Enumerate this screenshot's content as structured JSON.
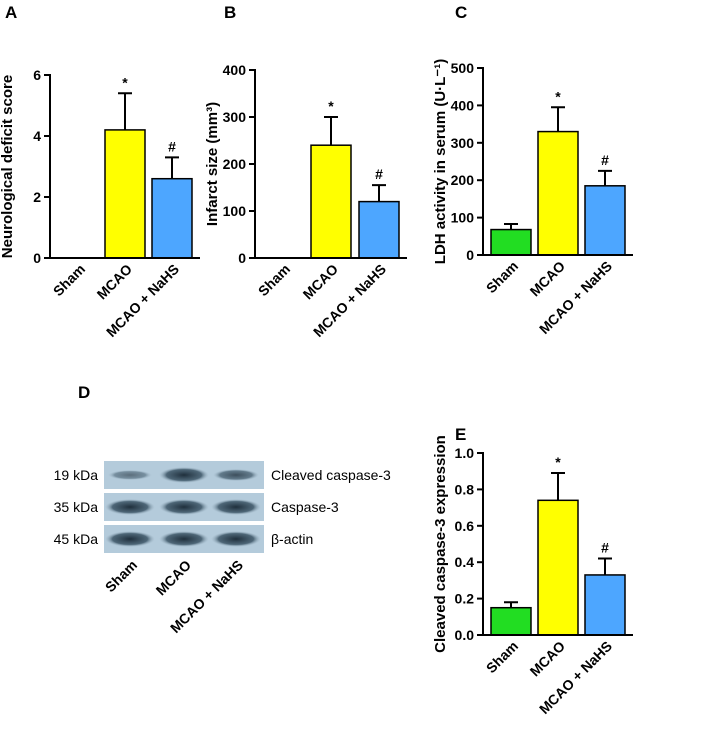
{
  "chart_data": [
    {
      "type": "bar",
      "panel": "A",
      "y_label": "Neurological deficit score",
      "categories": [
        "Sham",
        "MCAO",
        "MCAO + NaHS"
      ],
      "values": [
        0,
        4.2,
        2.6
      ],
      "errors": [
        0,
        1.2,
        0.7
      ],
      "colors": [
        "#22dd22",
        "#ffff00",
        "#4da6ff"
      ],
      "annotations": [
        null,
        "*",
        "#"
      ],
      "ylim": [
        0,
        6
      ],
      "yticks": [
        0,
        2,
        4,
        6
      ]
    },
    {
      "type": "bar",
      "panel": "B",
      "y_label": "Infarct size (mm³)",
      "categories": [
        "Sham",
        "MCAO",
        "MCAO + NaHS"
      ],
      "values": [
        0,
        240,
        120
      ],
      "errors": [
        0,
        60,
        35
      ],
      "colors": [
        "#22dd22",
        "#ffff00",
        "#4da6ff"
      ],
      "annotations": [
        null,
        "*",
        "#"
      ],
      "ylim": [
        0,
        400
      ],
      "yticks": [
        0,
        100,
        200,
        300,
        400
      ]
    },
    {
      "type": "bar",
      "panel": "C",
      "y_label": "LDH activity in serum (U·L⁻¹)",
      "categories": [
        "Sham",
        "MCAO",
        "MCAO + NaHS"
      ],
      "values": [
        68,
        330,
        185
      ],
      "errors": [
        15,
        65,
        40
      ],
      "colors": [
        "#22dd22",
        "#ffff00",
        "#4da6ff"
      ],
      "annotations": [
        null,
        "*",
        "#"
      ],
      "ylim": [
        0,
        500
      ],
      "yticks": [
        0,
        100,
        200,
        300,
        400,
        500
      ]
    },
    {
      "type": "bar",
      "panel": "E",
      "y_label": "Cleaved caspase-3 expression",
      "categories": [
        "Sham",
        "MCAO",
        "MCAO + NaHS"
      ],
      "values": [
        0.15,
        0.74,
        0.33
      ],
      "errors": [
        0.03,
        0.15,
        0.09
      ],
      "colors": [
        "#22dd22",
        "#ffff00",
        "#4da6ff"
      ],
      "annotations": [
        null,
        "*",
        "#"
      ],
      "ylim": [
        0,
        1
      ],
      "yticks": [
        {
          "value": 0,
          "label": "0.0"
        },
        0.2,
        0.4,
        0.6,
        0.8,
        {
          "value": 1,
          "label": "1.0"
        }
      ]
    }
  ],
  "blot": {
    "panel": "D",
    "rows": [
      {
        "size": "19 kDa",
        "protein": "Cleaved caspase-3"
      },
      {
        "size": "35 kDa",
        "protein": "Caspase-3"
      },
      {
        "size": "45 kDa",
        "protein": "β-actin"
      }
    ],
    "lanes": [
      "Sham",
      "MCAO",
      "MCAO + NaHS"
    ]
  }
}
